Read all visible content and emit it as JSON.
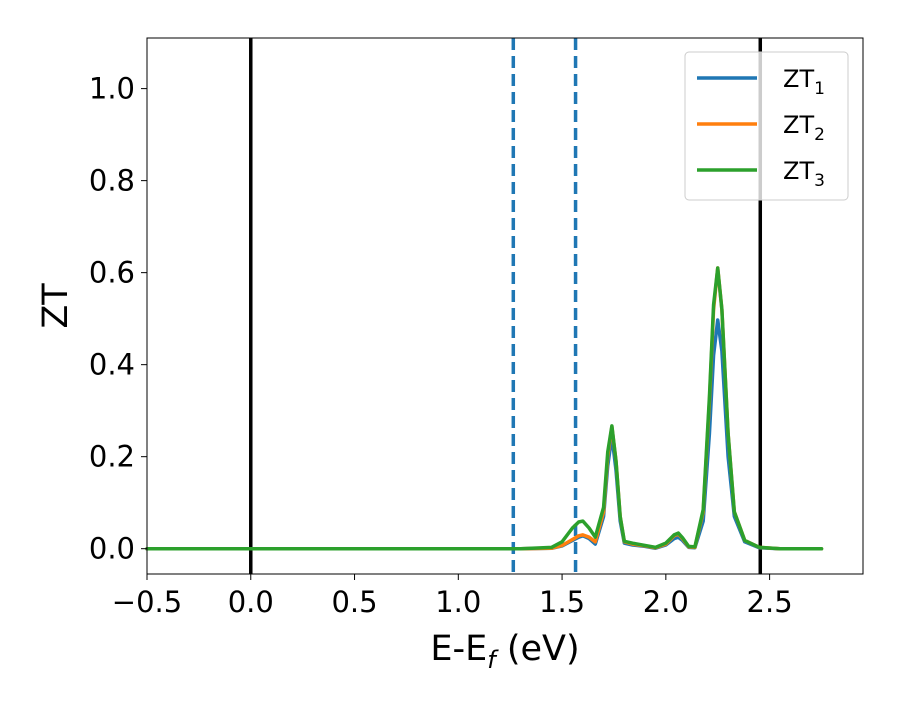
{
  "chart_data": {
    "type": "line",
    "xlabel": "E-E",
    "xlabel_sub": "f",
    "xlabel_suffix": " (eV)",
    "ylabel": "ZT",
    "xlim": [
      -0.5,
      2.95
    ],
    "ylim": [
      -0.055,
      1.11
    ],
    "x_ticks": [
      -0.5,
      0.0,
      0.5,
      1.0,
      1.5,
      2.0,
      2.5
    ],
    "x_tick_labels": [
      "−0.5",
      "0.0",
      "0.5",
      "1.0",
      "1.5",
      "2.0",
      "2.5"
    ],
    "y_ticks": [
      0.0,
      0.2,
      0.4,
      0.6,
      0.8,
      1.0
    ],
    "y_tick_labels": [
      "0.0",
      "0.2",
      "0.4",
      "0.6",
      "0.8",
      "1.0"
    ],
    "grid": false,
    "legend_position": "top-right",
    "vertical_lines": [
      {
        "x": 0.0,
        "style": "solid",
        "color": "#000000"
      },
      {
        "x": 2.455,
        "style": "solid",
        "color": "#000000"
      },
      {
        "x": 1.265,
        "style": "dashed",
        "color": "#1f77b4"
      },
      {
        "x": 1.565,
        "style": "dashed",
        "color": "#1f77b4"
      }
    ],
    "x": [
      -0.5,
      0.0,
      0.5,
      1.0,
      1.3,
      1.45,
      1.5,
      1.55,
      1.58,
      1.6,
      1.63,
      1.66,
      1.7,
      1.72,
      1.74,
      1.76,
      1.78,
      1.8,
      1.84,
      1.9,
      1.95,
      2.0,
      2.04,
      2.06,
      2.08,
      2.11,
      2.14,
      2.18,
      2.21,
      2.23,
      2.25,
      2.27,
      2.3,
      2.33,
      2.38,
      2.45,
      2.55,
      2.75
    ],
    "series": [
      {
        "name": "ZT",
        "name_sub": "1",
        "color": "#1f77b4",
        "values": [
          0,
          0,
          0,
          0,
          0.0,
          0.001,
          0.006,
          0.018,
          0.025,
          0.028,
          0.022,
          0.01,
          0.07,
          0.18,
          0.245,
          0.17,
          0.06,
          0.012,
          0.008,
          0.005,
          0.001,
          0.008,
          0.022,
          0.025,
          0.018,
          0.003,
          0.002,
          0.06,
          0.25,
          0.42,
          0.497,
          0.43,
          0.2,
          0.07,
          0.015,
          0.002,
          0.0,
          0.0
        ]
      },
      {
        "name": "ZT",
        "name_sub": "2",
        "color": "#ff7f0e",
        "values": [
          0,
          0,
          0,
          0,
          0.0,
          0.001,
          0.007,
          0.02,
          0.028,
          0.03,
          0.025,
          0.015,
          0.08,
          0.2,
          0.265,
          0.19,
          0.07,
          0.015,
          0.01,
          0.006,
          0.002,
          0.01,
          0.028,
          0.032,
          0.022,
          0.004,
          0.003,
          0.08,
          0.32,
          0.52,
          0.61,
          0.52,
          0.25,
          0.08,
          0.018,
          0.003,
          0.0,
          0.0
        ]
      },
      {
        "name": "ZT",
        "name_sub": "3",
        "color": "#2ca02c",
        "values": [
          0,
          0,
          0,
          0,
          0.0,
          0.003,
          0.015,
          0.045,
          0.058,
          0.06,
          0.045,
          0.025,
          0.09,
          0.21,
          0.267,
          0.19,
          0.07,
          0.016,
          0.012,
          0.007,
          0.003,
          0.012,
          0.03,
          0.034,
          0.024,
          0.005,
          0.004,
          0.085,
          0.33,
          0.53,
          0.61,
          0.52,
          0.25,
          0.08,
          0.018,
          0.003,
          0.0,
          0.0
        ]
      }
    ]
  }
}
